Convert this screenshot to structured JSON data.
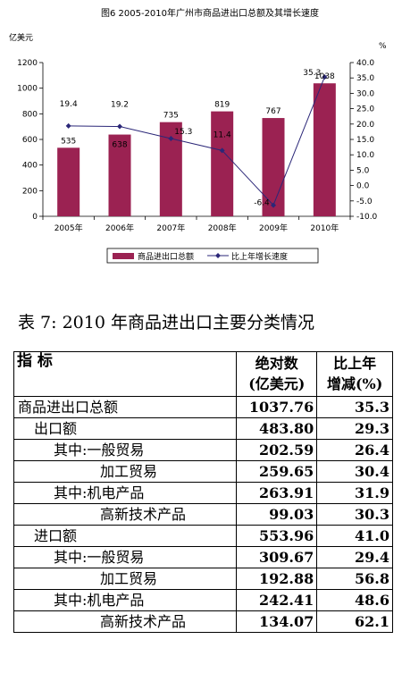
{
  "chart_data": {
    "type": "bar",
    "title": "图6  2005-2010年广州市商品进出口总额及其增长速度",
    "categories": [
      "2005年",
      "2006年",
      "2007年",
      "2008年",
      "2009年",
      "2010年"
    ],
    "series": [
      {
        "name": "商品进出口总额",
        "kind": "bar",
        "axis": "left",
        "values": [
          535,
          638,
          735,
          819,
          767,
          1038
        ]
      },
      {
        "name": "比上年增长速度",
        "kind": "line",
        "axis": "right",
        "values": [
          19.4,
          19.2,
          15.3,
          11.4,
          -6.4,
          35.3
        ]
      }
    ],
    "y_left": {
      "unit": "亿美元",
      "ylim": [
        0,
        1200
      ],
      "ticks": [
        0,
        200,
        400,
        600,
        800,
        1000,
        1200
      ]
    },
    "y_right": {
      "unit": "%",
      "ylim": [
        -10,
        40
      ],
      "ticks": [
        "-10.0",
        "-5.0",
        "0.0",
        "5.0",
        "10.0",
        "15.0",
        "20.0",
        "25.0",
        "30.0",
        "35.0",
        "40.0"
      ]
    },
    "legend_position": "bottom",
    "grid": false,
    "colors": {
      "bar": "#9b2252",
      "line": "#2b2778"
    }
  },
  "table": {
    "title": "表 7:   2010 年商品进出口主要分类情况",
    "headers": {
      "indicator": "指  标",
      "abs_line1": "绝对数",
      "abs_line2": "(亿美元)",
      "chg_line1": "比上年",
      "chg_line2": "增减(%)"
    },
    "rows": [
      {
        "label": "商品进出口总额",
        "indent": 0,
        "value": "1037.76",
        "change": "35.3"
      },
      {
        "label": "出口额",
        "indent": 1,
        "value": "483.80",
        "change": "29.3"
      },
      {
        "label": "其中:一般贸易",
        "indent": 2,
        "value": "202.59",
        "change": "26.4"
      },
      {
        "label": "加工贸易",
        "indent": 3,
        "value": "259.65",
        "change": "30.4"
      },
      {
        "label": "其中:机电产品",
        "indent": 2,
        "value": "263.91",
        "change": "31.9"
      },
      {
        "label": "高新技术产品",
        "indent": 3,
        "value": "99.03",
        "change": "30.3"
      },
      {
        "label": "进口额",
        "indent": 1,
        "value": "553.96",
        "change": "41.0"
      },
      {
        "label": "其中:一般贸易",
        "indent": 2,
        "value": "309.67",
        "change": "29.4"
      },
      {
        "label": "加工贸易",
        "indent": 3,
        "value": "192.88",
        "change": "56.8"
      },
      {
        "label": "其中:机电产品",
        "indent": 2,
        "value": "242.41",
        "change": "48.6"
      },
      {
        "label": "高新技术产品",
        "indent": 3,
        "value": "134.07",
        "change": "62.1"
      }
    ]
  }
}
